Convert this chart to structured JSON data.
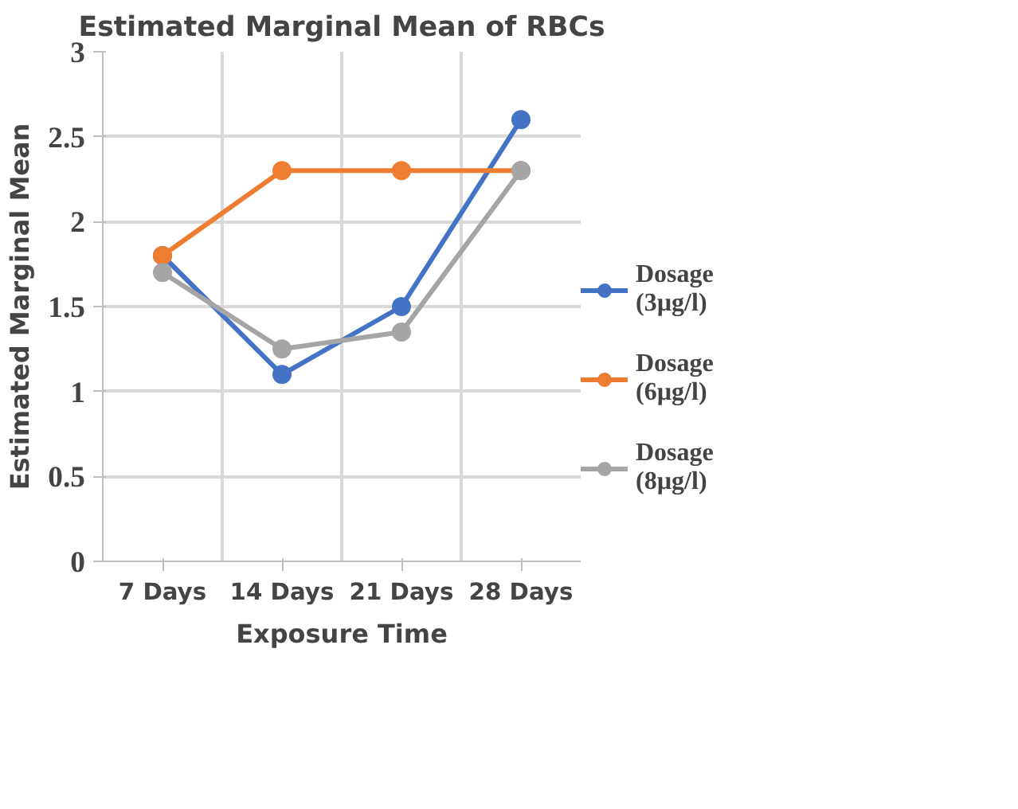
{
  "chart_data": {
    "type": "line",
    "title": "Estimated Marginal Mean of RBCs",
    "xlabel": "Exposure Time",
    "ylabel": "Estimated Marginal Mean",
    "categories": [
      "7 Days",
      "14 Days",
      "21 Days",
      "28 Days"
    ],
    "series": [
      {
        "name": "Dosage (3µg/l)",
        "color": "#4472c4",
        "values": [
          1.8,
          1.1,
          1.5,
          2.6
        ]
      },
      {
        "name": "Dosage (6µg/l)",
        "color": "#ed7d31",
        "values": [
          1.8,
          2.3,
          2.3,
          2.3
        ]
      },
      {
        "name": "Dosage (8µg/l)",
        "color": "#a5a5a5",
        "values": [
          1.7,
          1.25,
          1.35,
          2.3
        ]
      }
    ],
    "ylim": [
      0,
      3
    ],
    "yticks": [
      0,
      0.5,
      1,
      1.5,
      2,
      2.5,
      3
    ],
    "grid": true,
    "legend": "right",
    "marker": "circle"
  }
}
